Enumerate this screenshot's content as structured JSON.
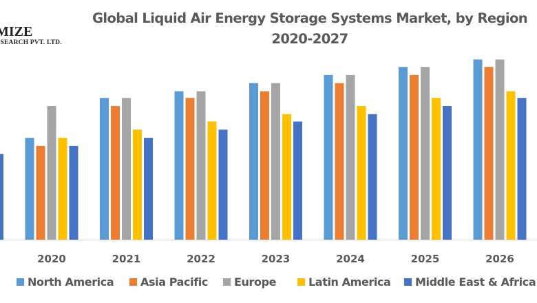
{
  "logo": {
    "line1": "MIZE",
    "line2": "ESEARCH PVT. LTD."
  },
  "chart_data": {
    "type": "bar",
    "title": "Global Liquid Air Energy Storage Systems Market, by Region",
    "subtitle": "2020-2027",
    "xlabel": "",
    "ylabel": "",
    "grid": false,
    "legend_position": "bottom",
    "categories": [
      "2020",
      "2021",
      "2022",
      "2023",
      "2024",
      "2025",
      "2026"
    ],
    "partial_left_category": {
      "series": "Middle East & Africa",
      "value": 116
    },
    "ylim": [
      0,
      250
    ],
    "series": [
      {
        "name": "North America",
        "color": "#5B9BD5",
        "values": [
          138,
          192,
          201,
          212,
          223,
          234,
          244
        ]
      },
      {
        "name": "Asia Pacific",
        "color": "#ED7D31",
        "values": [
          127,
          181,
          192,
          201,
          212,
          223,
          234
        ]
      },
      {
        "name": "Europe",
        "color": "#A5A5A5",
        "values": [
          181,
          192,
          201,
          212,
          223,
          234,
          244
        ]
      },
      {
        "name": "Latin America",
        "color": "#FFC000",
        "values": [
          138,
          149,
          160,
          170,
          181,
          192,
          201
        ]
      },
      {
        "name": "Middle East & Africa",
        "color": "#4472C4",
        "values": [
          127,
          138,
          149,
          160,
          170,
          181,
          192
        ]
      }
    ]
  }
}
